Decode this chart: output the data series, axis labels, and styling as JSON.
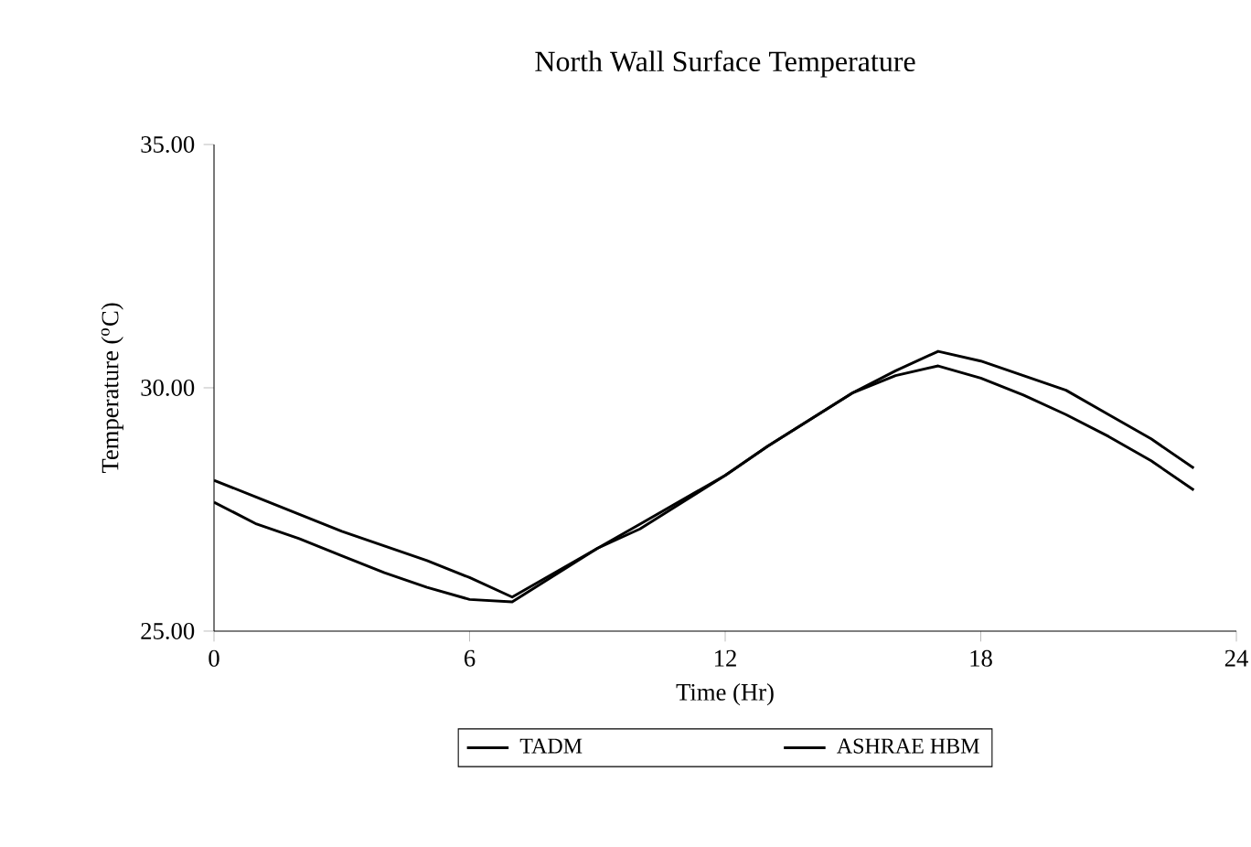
{
  "chart_data": {
    "type": "line",
    "title": "North Wall Surface Temperature",
    "xlabel": "Time (Hr)",
    "ylabel": "Temperature ($^{o}$C)",
    "x": [
      0,
      1,
      2,
      3,
      4,
      5,
      6,
      7,
      8,
      9,
      10,
      11,
      12,
      13,
      14,
      15,
      16,
      17,
      18,
      19,
      20,
      21,
      22,
      23
    ],
    "series": [
      {
        "name": "TADM",
        "color": "#000000",
        "values": [
          28.1,
          27.75,
          27.4,
          27.05,
          26.75,
          26.45,
          26.1,
          25.7,
          26.2,
          26.7,
          27.2,
          27.7,
          28.2,
          28.8,
          29.35,
          29.9,
          30.35,
          30.75,
          30.55,
          30.25,
          29.95,
          29.45,
          28.95,
          28.35
        ]
      },
      {
        "name": "ASHRAE HBM",
        "color": "#000000",
        "values": [
          27.65,
          27.2,
          26.9,
          26.55,
          26.2,
          25.9,
          25.65,
          25.6,
          26.15,
          26.7,
          27.1,
          27.65,
          28.2,
          28.8,
          29.35,
          29.9,
          30.25,
          30.45,
          30.2,
          29.85,
          29.45,
          29.0,
          28.5,
          27.9
        ]
      }
    ],
    "xlim": [
      0,
      24
    ],
    "xticks": [
      0,
      6,
      12,
      18,
      24
    ],
    "ylim": [
      25,
      35
    ],
    "yticks": [
      {
        "value": 25,
        "label": "25.00"
      },
      {
        "value": 30,
        "label": "30.00"
      },
      {
        "value": 35,
        "label": "35.00"
      }
    ],
    "grid": false,
    "legend": "bottom",
    "marker": "none",
    "line_style": "solid"
  }
}
